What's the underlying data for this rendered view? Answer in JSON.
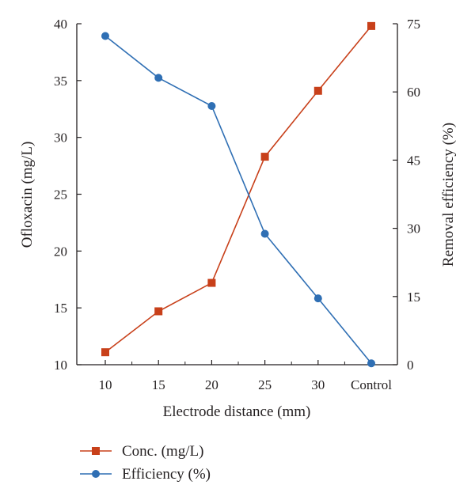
{
  "chart_data": {
    "type": "line",
    "categories": [
      "10",
      "15",
      "20",
      "25",
      "30",
      "Control"
    ],
    "xlabel": "Electrode distance (mm)",
    "ylabel": "Ofloxacin (mg/L)",
    "y2label": "Removal efficiency (%)",
    "ylim": [
      10,
      40
    ],
    "y2lim": [
      0,
      75
    ],
    "yticks": [
      "10",
      "15",
      "20",
      "25",
      "30",
      "35",
      "40"
    ],
    "y2ticks": [
      "0",
      "15",
      "30",
      "45",
      "60",
      "75"
    ],
    "grid": false,
    "legend_position": "bottom-left",
    "series": [
      {
        "name": "Conc. (mg/L)",
        "axis": "left",
        "marker": "square",
        "color": "#c8401a",
        "values": [
          11.1,
          14.7,
          17.2,
          28.3,
          34.1,
          39.8
        ]
      },
      {
        "name": "Efficiency (%)",
        "axis": "right",
        "marker": "circle",
        "color": "#2f6fb4",
        "values": [
          72.3,
          63.1,
          56.9,
          28.8,
          14.6,
          0.3
        ]
      }
    ]
  }
}
